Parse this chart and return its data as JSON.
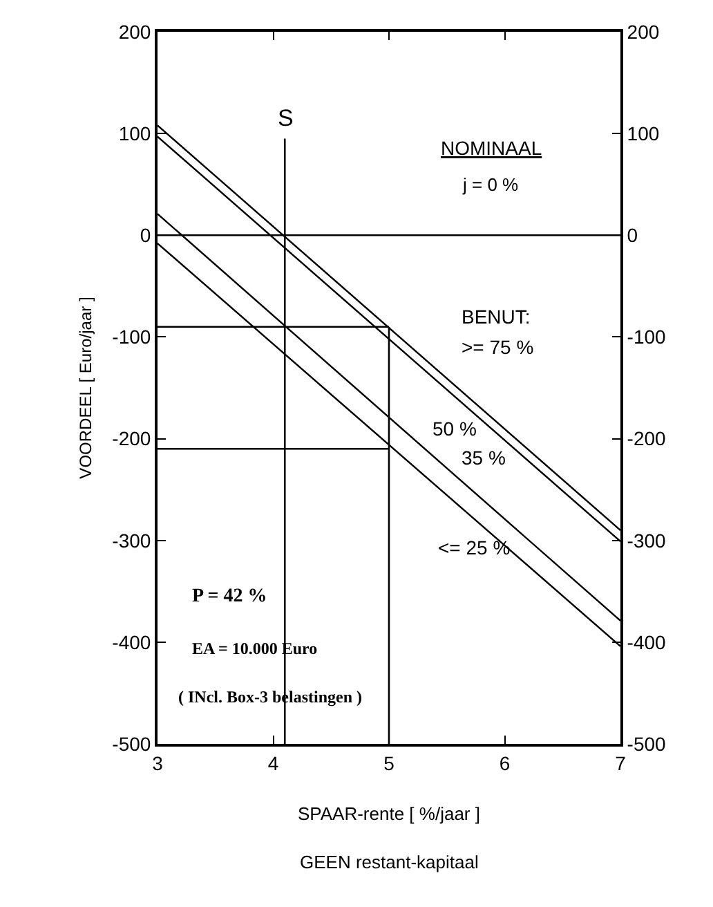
{
  "chart_data": {
    "type": "line",
    "xlabel": "SPAAR-rente [ %/jaar ]",
    "ylabel": "VOORDEEL [ Euro/jaar ]",
    "legend_title": "BENUT:",
    "x": [
      3,
      7
    ],
    "series": [
      {
        "name": ">= 75 %",
        "color": "#000000",
        "values": [
          108,
          -290
        ]
      },
      {
        "name": "50 %",
        "color": "#000000",
        "values": [
          97,
          -301
        ]
      },
      {
        "name": "35 %",
        "color": "#000000",
        "values": [
          21,
          -379
        ]
      },
      {
        "name": "<= 25 %",
        "color": "#000000",
        "values": [
          -8,
          -404
        ]
      }
    ],
    "xlim": [
      3,
      7
    ],
    "xticks": [
      3,
      4,
      5,
      6,
      7
    ],
    "ylim": [
      -500,
      200
    ],
    "yticks": [
      -500,
      -400,
      -300,
      -200,
      -100,
      0,
      100,
      200
    ],
    "y2lim": [
      -500,
      200
    ],
    "y2ticks": [
      -500,
      -400,
      -300,
      -200,
      -100,
      0,
      100,
      200
    ],
    "ref_lines": [
      {
        "axis": "x",
        "value": 4.1,
        "label": "S"
      },
      {
        "axis": "x",
        "value": 5
      },
      {
        "axis": "y",
        "value": 0
      },
      {
        "axis": "y",
        "value": -90
      },
      {
        "axis": "y",
        "value": -210
      }
    ],
    "annotations": [
      "NOMINAAL",
      "j = 0 %",
      "P = 42 %",
      "EA = 10.000 Euro",
      "( INcl. Box-3 belastingen )",
      "GEEN restant-kapitaal"
    ],
    "grid": false,
    "legend": false,
    "marker": "none",
    "line_style": "solid"
  }
}
